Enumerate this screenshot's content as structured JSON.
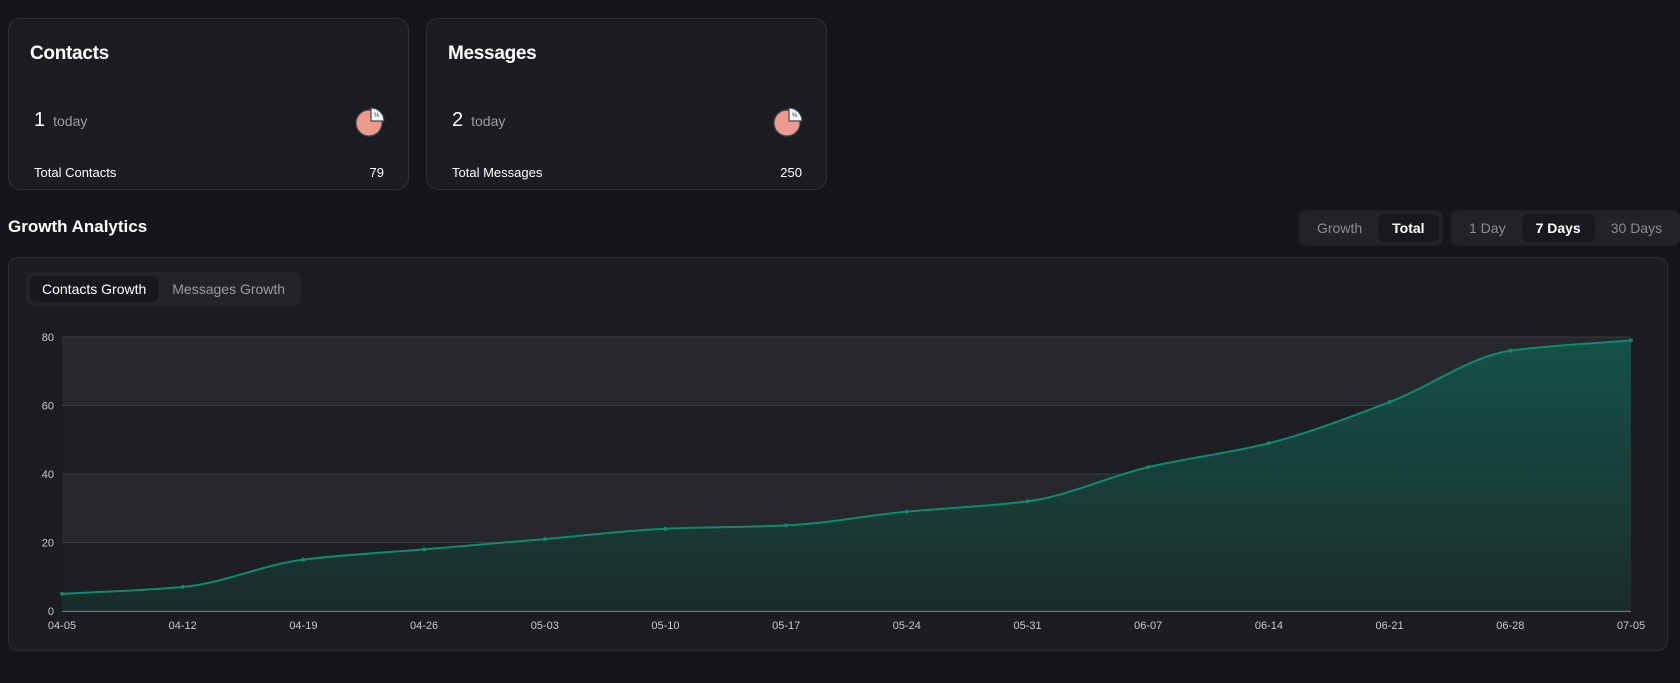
{
  "cards": [
    {
      "title": "Contacts",
      "today_value": "1",
      "today_label": "today",
      "total_label": "Total Contacts",
      "total_value": "79",
      "icon": "pie-chart-icon"
    },
    {
      "title": "Messages",
      "today_value": "2",
      "today_label": "today",
      "total_label": "Total Messages",
      "total_value": "250",
      "icon": "pie-chart-icon"
    }
  ],
  "analytics": {
    "title": "Growth Analytics",
    "mode_options": [
      "Growth",
      "Total"
    ],
    "mode_selected": "Total",
    "range_options": [
      "1 Day",
      "7 Days",
      "30 Days"
    ],
    "range_selected": "7 Days",
    "tabs": [
      "Contacts Growth",
      "Messages Growth"
    ],
    "tab_selected": "Contacts Growth"
  },
  "colors": {
    "line": "#0f8a6f",
    "icon_pie": "#ef9a8f",
    "background": "#15161a"
  },
  "chart_data": {
    "type": "area",
    "categories": [
      "04-05",
      "04-12",
      "04-19",
      "04-26",
      "05-03",
      "05-10",
      "05-17",
      "05-24",
      "05-31",
      "06-07",
      "06-14",
      "06-21",
      "06-28",
      "07-05"
    ],
    "values": [
      5,
      7,
      15,
      18,
      21,
      24,
      25,
      29,
      32,
      42,
      49,
      61,
      76,
      79
    ],
    "ylim": [
      0,
      80
    ],
    "yticks": [
      "0",
      "20",
      "40",
      "60",
      "80"
    ],
    "grid": true
  }
}
